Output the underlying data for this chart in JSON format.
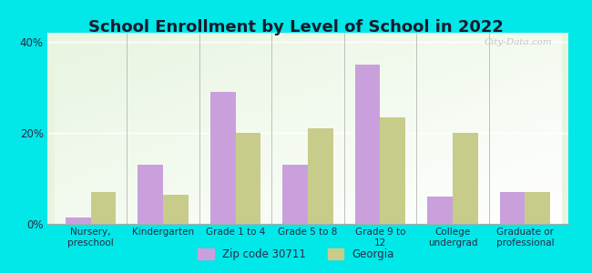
{
  "title": "School Enrollment by Level of School in 2022",
  "categories": [
    "Nursery,\npreschool",
    "Kindergarten",
    "Grade 1 to 4",
    "Grade 5 to 8",
    "Grade 9 to\n12",
    "College\nundergrad",
    "Graduate or\nprofessional"
  ],
  "zip_values": [
    1.5,
    13.0,
    29.0,
    13.0,
    35.0,
    6.0,
    7.0
  ],
  "georgia_values": [
    7.0,
    6.5,
    20.0,
    21.0,
    23.5,
    20.0,
    7.0
  ],
  "zip_color": "#c9a0dc",
  "georgia_color": "#c8cc8a",
  "zip_label": "Zip code 30711",
  "georgia_label": "Georgia",
  "ylim": [
    0,
    42
  ],
  "yticks": [
    0,
    20,
    40
  ],
  "ytick_labels": [
    "0%",
    "20%",
    "40%"
  ],
  "background_color": "#00e8e8",
  "plot_bg_color": "#e8f5e0",
  "title_fontsize": 13,
  "bar_width": 0.35,
  "watermark": "City-Data.com"
}
